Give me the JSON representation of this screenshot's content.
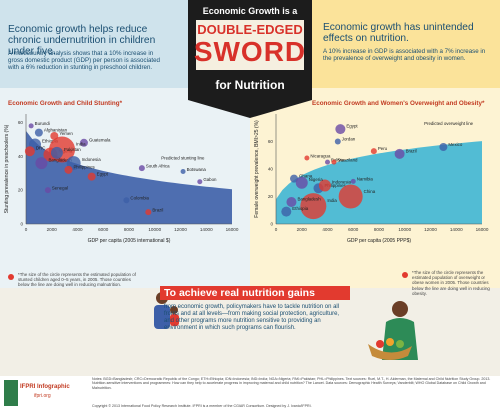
{
  "title": {
    "line1": "Economic Growth is a",
    "line2": "DOUBLE-EDGED",
    "line3": "SWORD",
    "line4": "for Nutrition"
  },
  "left_top": {
    "headline": "Economic growth helps reduce chronic undernutrition in children under five.",
    "body": "A multicountry analysis shows that a 10% increase in gross domestic product (GDP) per person is associated with a 6% reduction in stunting in preschool children."
  },
  "right_top": {
    "headline": "Economic growth has unintended effects on nutrition.",
    "body": "A 10% increase in GDP is associated with a 7% increase in the prevalence of overweight and obesity in women."
  },
  "colors": {
    "accent_red": "#e23a2f",
    "stunting_blue": "#3d5fa8",
    "overweight_teal": "#3fb6d4",
    "title_bg": "#1c1c1c",
    "sword_red": "#d8312a"
  },
  "chart_data": [
    {
      "type": "scatter",
      "title": "Economic Growth and Child Stunting*",
      "xlabel": "GDP per capita (2005 international $)",
      "ylabel": "Stunting prevalence in preschoolers (%)",
      "xlim": [
        0,
        16000
      ],
      "ylim": [
        0,
        65
      ],
      "x_ticks": [
        "0",
        "2000",
        "4000",
        "6000",
        "8000",
        "10000",
        "12000",
        "14000",
        "16000"
      ],
      "y_ticks": [
        "0",
        "20",
        "40",
        "60"
      ],
      "trend_label": "Predicted stunting line",
      "points": [
        {
          "label": "Burundi",
          "x": 400,
          "y": 58,
          "r": 2.5
        },
        {
          "label": "Afghanistan",
          "x": 1000,
          "y": 54,
          "r": 4
        },
        {
          "label": "Yemen",
          "x": 2200,
          "y": 52,
          "r": 4
        },
        {
          "label": "Guatemala",
          "x": 4500,
          "y": 48,
          "r": 4
        },
        {
          "label": "Ethiopia",
          "x": 700,
          "y": 47,
          "r": 6
        },
        {
          "label": "Nigeria",
          "x": 1900,
          "y": 41,
          "r": 7
        },
        {
          "label": "India",
          "x": 2800,
          "y": 44,
          "r": 13
        },
        {
          "label": "Pakistan",
          "x": 2400,
          "y": 42,
          "r": 6
        },
        {
          "label": "DRC",
          "x": 300,
          "y": 43,
          "r": 5
        },
        {
          "label": "Bangladesh",
          "x": 1200,
          "y": 36,
          "r": 6
        },
        {
          "label": "Indonesia",
          "x": 3700,
          "y": 36,
          "r": 7
        },
        {
          "label": "Philippines",
          "x": 3300,
          "y": 32,
          "r": 4
        },
        {
          "label": "South Africa",
          "x": 9000,
          "y": 33,
          "r": 3
        },
        {
          "label": "Botswana",
          "x": 12200,
          "y": 31,
          "r": 2.5
        },
        {
          "label": "Egypt",
          "x": 5100,
          "y": 28,
          "r": 4
        },
        {
          "label": "Senegal",
          "x": 1700,
          "y": 20,
          "r": 3
        },
        {
          "label": "Colombia",
          "x": 7800,
          "y": 14,
          "r": 3
        },
        {
          "label": "Brazil",
          "x": 9500,
          "y": 7,
          "r": 3
        },
        {
          "label": "Gabon",
          "x": 13500,
          "y": 25,
          "r": 2.5
        }
      ]
    },
    {
      "type": "scatter",
      "title": "Economic Growth and Women's Overweight and Obesity*",
      "xlabel": "GDP per capita (2005 PPP$)",
      "ylabel": "Female overweight prevalence, BMI>25 (%)",
      "xlim": [
        0,
        16000
      ],
      "ylim": [
        0,
        80
      ],
      "x_ticks": [
        "0",
        "2000",
        "4000",
        "6000",
        "8000",
        "10000",
        "12000",
        "14000",
        "16000"
      ],
      "y_ticks": [
        "0",
        "20",
        "40",
        "60"
      ],
      "trend_label": "Predicted overweight line",
      "points": [
        {
          "label": "Egypt",
          "x": 5000,
          "y": 69,
          "r": 5
        },
        {
          "label": "Jordan",
          "x": 4800,
          "y": 60,
          "r": 3
        },
        {
          "label": "Peru",
          "x": 7600,
          "y": 53,
          "r": 3
        },
        {
          "label": "Brazil",
          "x": 9600,
          "y": 51,
          "r": 5
        },
        {
          "label": "Mexico",
          "x": 13000,
          "y": 56,
          "r": 4
        },
        {
          "label": "Nicaragua",
          "x": 2400,
          "y": 48,
          "r": 2.5
        },
        {
          "label": "Bolivia",
          "x": 4000,
          "y": 45,
          "r": 2.5
        },
        {
          "label": "Ghana",
          "x": 1400,
          "y": 33,
          "r": 4
        },
        {
          "label": "Swaziland",
          "x": 4500,
          "y": 45,
          "r": 2.5
        },
        {
          "label": "Namibia",
          "x": 6000,
          "y": 31,
          "r": 2.5
        },
        {
          "label": "Philippines",
          "x": 3300,
          "y": 26,
          "r": 5
        },
        {
          "label": "Indonesia",
          "x": 3800,
          "y": 28,
          "r": 6
        },
        {
          "label": "Nigeria",
          "x": 2000,
          "y": 30,
          "r": 6
        },
        {
          "label": "China",
          "x": 5800,
          "y": 20,
          "r": 12
        },
        {
          "label": "India",
          "x": 2900,
          "y": 13,
          "r": 13
        },
        {
          "label": "Bangladesh",
          "x": 1200,
          "y": 16,
          "r": 5
        },
        {
          "label": "Ethiopia",
          "x": 800,
          "y": 9,
          "r": 5
        }
      ]
    }
  ],
  "left_note": "*The size of the circle represents the estimated population of stunted children aged 0–5 years, in 2005. Those countries below the line are doing well in reducing malnutrition.",
  "right_note": "*The size of the circle represents the estimated population of overweight or obese women in 2005. Those countries below the line are doing well in reducing obesity.",
  "banner": {
    "heading": "To achieve real nutrition gains",
    "body": "from economic growth, policymakers have to tackle nutrition on all fronts and at all levels—from making social protection, agriculture, and other programs more nutrition sensitive to providing an environment in which such programs can flourish."
  },
  "footer": {
    "logo": "IFPRI Infographic",
    "url": "ifpri.org",
    "notes": "Notes: BGD=Bangladesh; CRC=Democratic Republic of the Congo; ETH=Ethiopia; IDN=Indonesia; IND=India; NGA=Nigeria; PAK=Pakistan; PHL=Philippines. Text sources: Ruel, M.T., H. Alderman, the Maternal and Child Nutrition Study Group. 2013. Nutrition-sensitive interventions and programmes: How can they help to accelerate progress in improving maternal and child nutrition? The Lancet. Data sources: Demographic Health Surveys; Vanderbilt; WHO Global Database on Child Growth and Malnutrition.",
    "copyright": "Copyright © 2013 International Food Policy Research Institute. IFPRI is a member of the CGIAR Consortium. Designed by J. Ivanic/IFPRI."
  }
}
